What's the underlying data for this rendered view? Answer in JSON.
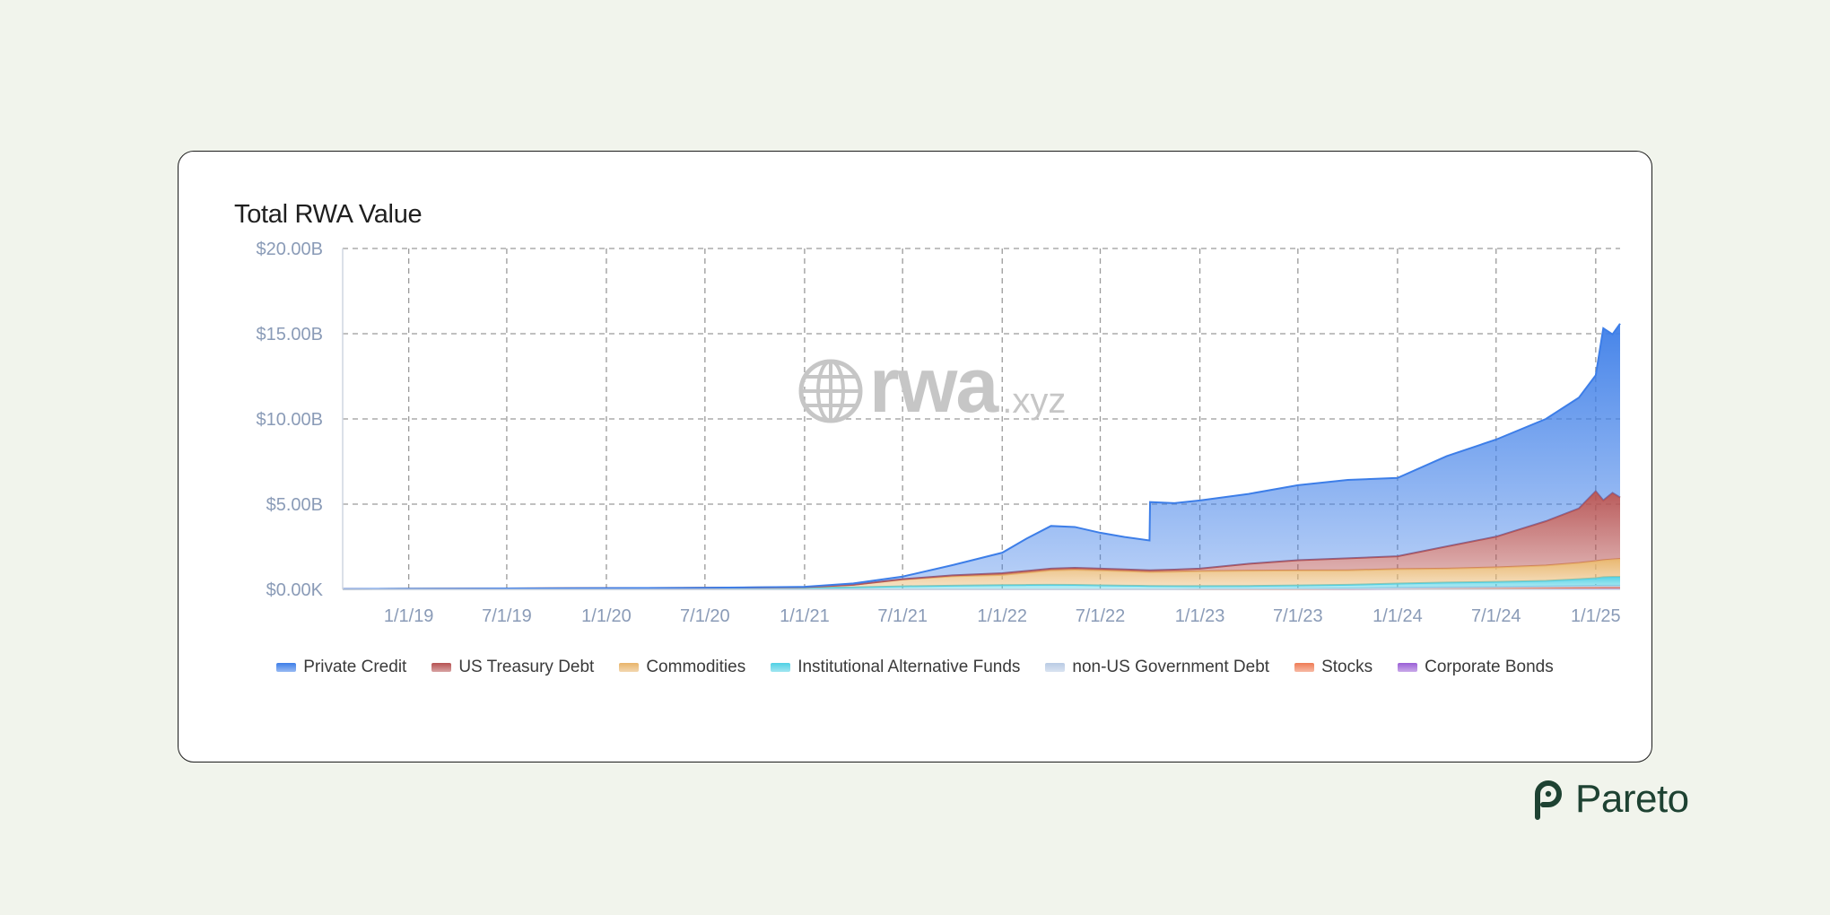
{
  "brand": {
    "name": "Pareto",
    "color": "#1e4232",
    "icon": "pareto-logo-icon"
  },
  "watermark": {
    "main": "rwa",
    "sub": ".xyz",
    "icon": "globe-icon"
  },
  "chart_data": {
    "type": "area",
    "stacked": true,
    "title": "Total RWA Value",
    "xlabel": "",
    "ylabel": "",
    "y_unit": "billions USD",
    "ylim": [
      0,
      20
    ],
    "yticks": [
      {
        "value": 0,
        "label": "$0.00K"
      },
      {
        "value": 5,
        "label": "$5.00B"
      },
      {
        "value": 10,
        "label": "$10.00B"
      },
      {
        "value": 15,
        "label": "$15.00B"
      },
      {
        "value": 20,
        "label": "$20.00B"
      }
    ],
    "x_range": [
      "2018-09-01",
      "2025-02-15"
    ],
    "xticks": [
      {
        "value": "2019-01-01",
        "label": "1/1/19"
      },
      {
        "value": "2019-07-01",
        "label": "7/1/19"
      },
      {
        "value": "2020-01-01",
        "label": "1/1/20"
      },
      {
        "value": "2020-07-01",
        "label": "7/1/20"
      },
      {
        "value": "2021-01-01",
        "label": "1/1/21"
      },
      {
        "value": "2021-07-01",
        "label": "7/1/21"
      },
      {
        "value": "2022-01-01",
        "label": "1/1/22"
      },
      {
        "value": "2022-07-01",
        "label": "7/1/22"
      },
      {
        "value": "2023-01-01",
        "label": "1/1/23"
      },
      {
        "value": "2023-07-01",
        "label": "7/1/23"
      },
      {
        "value": "2024-01-01",
        "label": "1/1/24"
      },
      {
        "value": "2024-07-01",
        "label": "7/1/24"
      },
      {
        "value": "2025-01-01",
        "label": "1/1/25"
      }
    ],
    "grid": true,
    "legend_position": "bottom",
    "x": [
      "2018-09-01",
      "2019-01-01",
      "2019-07-01",
      "2020-01-01",
      "2020-07-01",
      "2021-01-01",
      "2021-04-01",
      "2021-07-01",
      "2021-10-01",
      "2022-01-01",
      "2022-02-15",
      "2022-04-01",
      "2022-05-15",
      "2022-07-01",
      "2022-08-15",
      "2022-09-30",
      "2022-10-01",
      "2022-11-15",
      "2023-01-01",
      "2023-04-01",
      "2023-07-01",
      "2023-10-01",
      "2024-01-01",
      "2024-04-01",
      "2024-07-01",
      "2024-10-01",
      "2024-12-01",
      "2025-01-01",
      "2025-01-15",
      "2025-02-01",
      "2025-02-15"
    ],
    "series": [
      {
        "name": "Corporate Bonds",
        "color": "#9a5fd6",
        "values": [
          0,
          0,
          0,
          0,
          0,
          0,
          0,
          0,
          0,
          0,
          0,
          0,
          0,
          0,
          0,
          0,
          0,
          0,
          0,
          0,
          0,
          0,
          0.02,
          0.03,
          0.04,
          0.05,
          0.06,
          0.06,
          0.07,
          0.07,
          0.07
        ]
      },
      {
        "name": "Stocks",
        "color": "#ef7c55",
        "values": [
          0,
          0,
          0,
          0,
          0,
          0,
          0,
          0,
          0,
          0,
          0,
          0,
          0,
          0,
          0,
          0,
          0,
          0,
          0,
          0,
          0,
          0.01,
          0.02,
          0.03,
          0.03,
          0.04,
          0.05,
          0.05,
          0.05,
          0.05,
          0.05
        ]
      },
      {
        "name": "non-US Government Debt",
        "color": "#b9cbe4",
        "values": [
          0,
          0,
          0,
          0,
          0,
          0,
          0,
          0,
          0,
          0,
          0,
          0,
          0,
          0,
          0,
          0,
          0,
          0,
          0.01,
          0.02,
          0.03,
          0.04,
          0.05,
          0.06,
          0.07,
          0.08,
          0.09,
          0.1,
          0.1,
          0.1,
          0.1
        ]
      },
      {
        "name": "Institutional Alternative Funds",
        "color": "#4fd0e4",
        "values": [
          0.02,
          0.03,
          0.04,
          0.05,
          0.06,
          0.08,
          0.12,
          0.18,
          0.22,
          0.25,
          0.26,
          0.27,
          0.26,
          0.24,
          0.22,
          0.2,
          0.2,
          0.19,
          0.18,
          0.18,
          0.2,
          0.22,
          0.25,
          0.28,
          0.3,
          0.33,
          0.4,
          0.45,
          0.5,
          0.52,
          0.52
        ]
      },
      {
        "name": "Commodities",
        "color": "#e8b46a",
        "values": [
          0,
          0,
          0.01,
          0.02,
          0.03,
          0.05,
          0.15,
          0.4,
          0.55,
          0.6,
          0.72,
          0.85,
          0.9,
          0.88,
          0.85,
          0.82,
          0.82,
          0.85,
          0.88,
          0.9,
          0.88,
          0.85,
          0.85,
          0.82,
          0.85,
          0.9,
          0.95,
          1.0,
          1.0,
          1.02,
          1.05
        ]
      },
      {
        "name": "US Treasury Debt",
        "color": "#b65252",
        "values": [
          0,
          0,
          0,
          0,
          0,
          0,
          0,
          0.02,
          0.05,
          0.1,
          0.1,
          0.1,
          0.1,
          0.1,
          0.1,
          0.1,
          0.1,
          0.12,
          0.15,
          0.4,
          0.6,
          0.7,
          0.75,
          1.3,
          1.8,
          2.6,
          3.2,
          4.1,
          3.5,
          3.9,
          3.6
        ]
      },
      {
        "name": "Private Credit",
        "color": "#3d7ee8",
        "values": [
          0,
          0,
          0,
          0,
          0,
          0.02,
          0.08,
          0.15,
          0.6,
          1.2,
          1.9,
          2.5,
          2.4,
          2.1,
          1.9,
          1.75,
          4.0,
          3.9,
          4.0,
          4.1,
          4.4,
          4.6,
          4.6,
          5.3,
          5.7,
          6.0,
          6.5,
          6.8,
          10.1,
          9.3,
          10.2
        ]
      }
    ]
  }
}
